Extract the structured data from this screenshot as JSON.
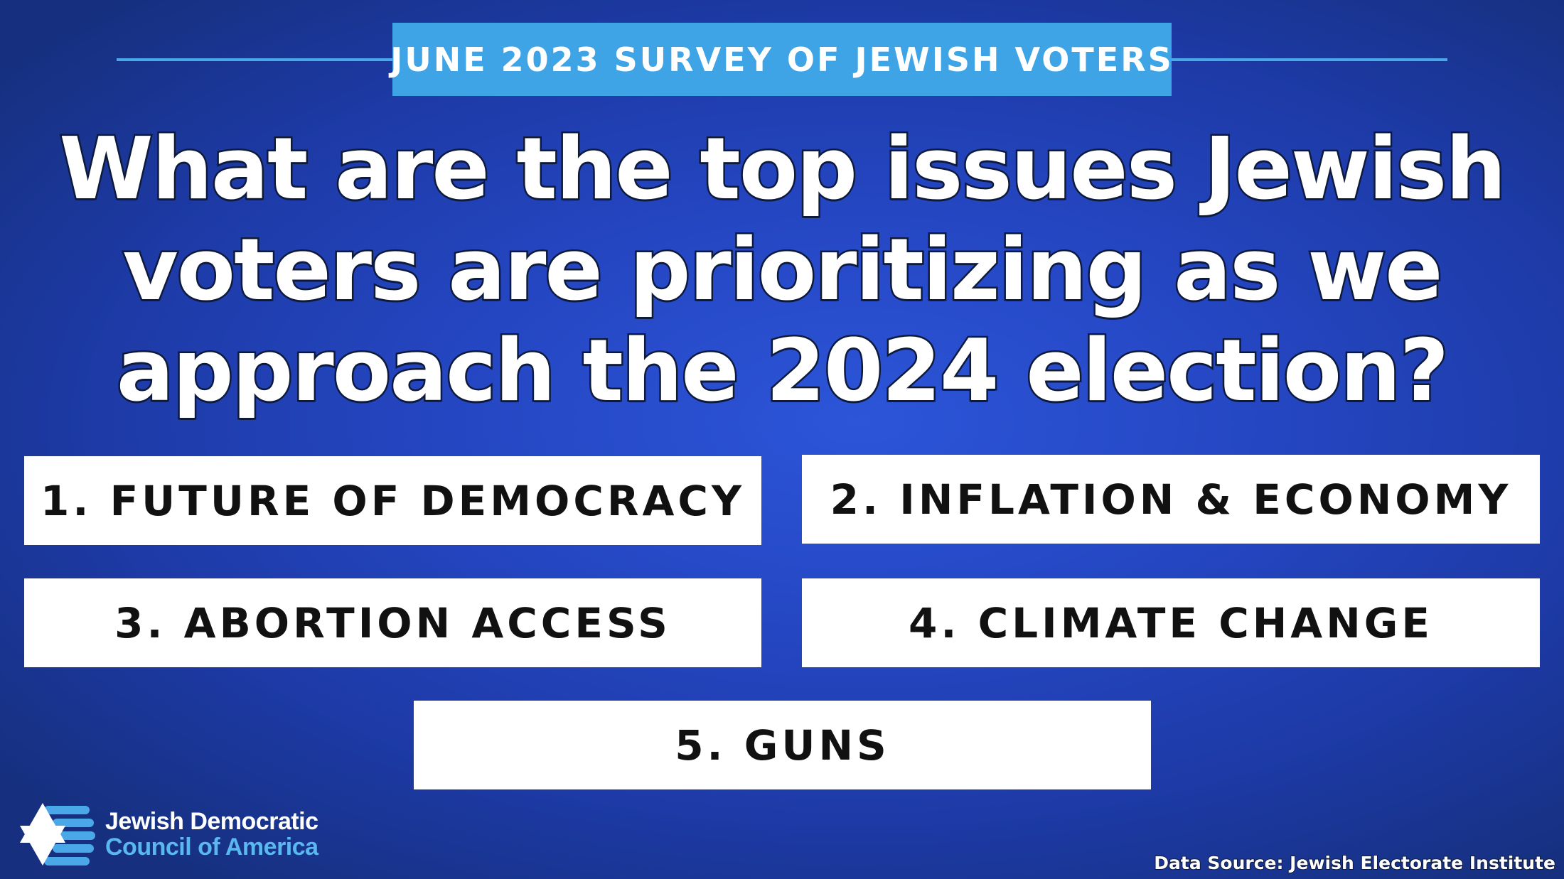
{
  "header": {
    "badge": "JUNE 2023 SURVEY OF JEWISH VOTERS"
  },
  "headline": {
    "line1": "What are the top issues Jewish",
    "line2": "voters are prioritizing as we",
    "line3": "approach the 2024 election?"
  },
  "issues": [
    "1. FUTURE OF DEMOCRACY",
    "2. INFLATION & ECONOMY",
    "3. ABORTION ACCESS",
    "4. CLIMATE CHANGE",
    "5. GUNS"
  ],
  "logo": {
    "line1": "Jewish Democratic",
    "line2": "Council of America",
    "icon": "star-of-david-flag-icon"
  },
  "footer": {
    "source": "Data Source: Jewish Electorate Institute"
  },
  "colors": {
    "background": "#2547c4",
    "accent": "#3ea4e6",
    "logo_blue": "#5ab8ee",
    "text_dark": "#111111"
  }
}
